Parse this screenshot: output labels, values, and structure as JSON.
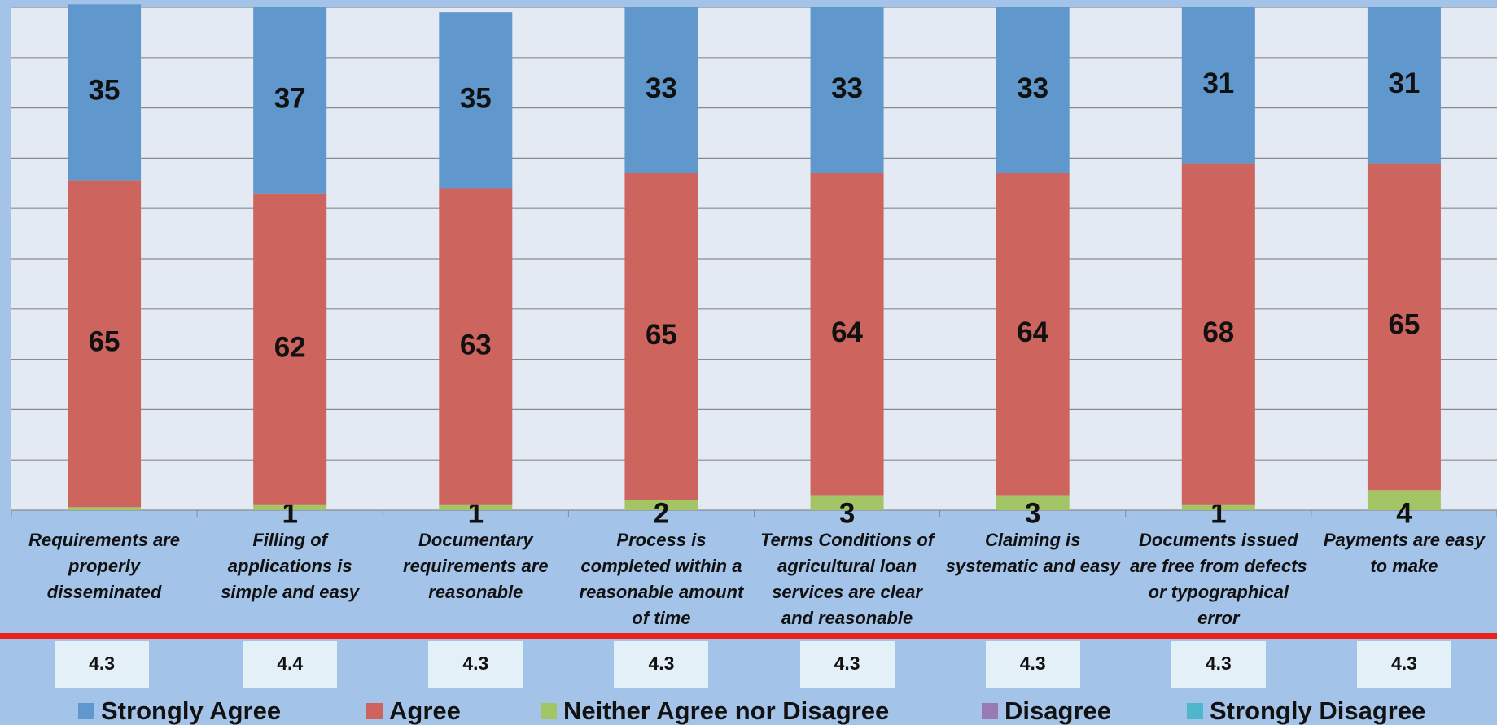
{
  "chart_data": {
    "type": "stacked_bar",
    "categories": [
      "Requirements are properly disseminated",
      "Filling of applications is simple and easy",
      "Documentary requirements are reasonable",
      "Process is completed within a reasonable amount of time",
      "Terms Conditions of agricultural loan services are clear and reasonable",
      "Claiming is systematic and easy",
      "Documents issued are free from defects or typographical error",
      "Payments are easy to make"
    ],
    "series": [
      {
        "name": "Strongly Agree",
        "color": "#6097cc",
        "values": [
          35,
          37,
          35,
          33,
          33,
          33,
          31,
          31
        ]
      },
      {
        "name": "Agree",
        "color": "#cd645e",
        "values": [
          65,
          62,
          63,
          65,
          64,
          64,
          68,
          65
        ]
      },
      {
        "name": "Neither Agree nor Disagree",
        "color": "#a4c566",
        "values": [
          0.6,
          1,
          1,
          2,
          3,
          3,
          1,
          4
        ],
        "value_labels": [
          null,
          "1",
          "1",
          "2",
          "3",
          "3",
          "1",
          "4"
        ]
      },
      {
        "name": "Disagree",
        "color": "#9a7ab5",
        "values": [
          0,
          0,
          0,
          0,
          0,
          0,
          0,
          0
        ]
      },
      {
        "name": "Strongly Disagree",
        "color": "#4fb7cc",
        "values": [
          0,
          0,
          0,
          0,
          0,
          0,
          0,
          0
        ]
      }
    ],
    "mean_values": [
      "4.3",
      "4.4",
      "4.3",
      "4.3",
      "4.3",
      "4.3",
      "4.3",
      "4.3"
    ],
    "ylim": [
      0,
      100
    ],
    "yticks": [
      0,
      10,
      20,
      30,
      40,
      50,
      60,
      70,
      80,
      90,
      100
    ],
    "grid": true
  }
}
